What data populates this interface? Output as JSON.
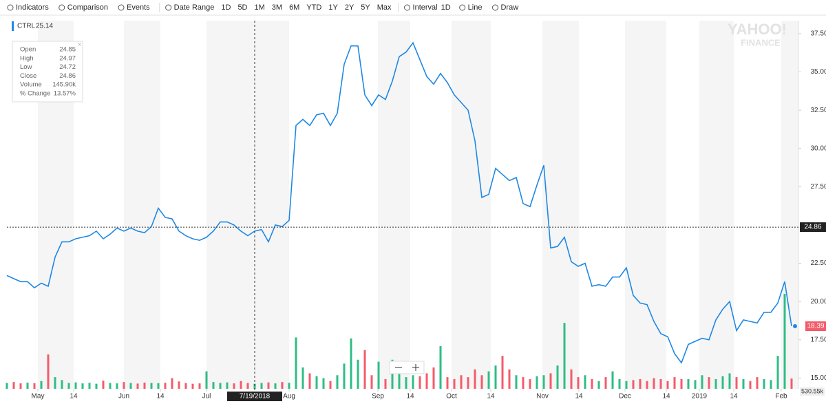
{
  "toolbar": {
    "indicators": "Indicators",
    "comparison": "Comparison",
    "events": "Events",
    "date_range": "Date Range",
    "ranges": [
      "1D",
      "5D",
      "1M",
      "3M",
      "6M",
      "YTD",
      "1Y",
      "2Y",
      "5Y",
      "Max"
    ],
    "interval": "Interval",
    "interval_value": "1D",
    "chart_type": "Line",
    "draw": "Draw"
  },
  "watermark": [
    "YAHOO!",
    "FINANCE"
  ],
  "legend_value": "25.14",
  "tooltip": {
    "rows": [
      [
        "Open",
        "24.85"
      ],
      [
        "High",
        "24.97"
      ],
      [
        "Low",
        "24.72"
      ],
      [
        "Close",
        "24.86"
      ],
      [
        "Volume",
        "145.90k"
      ],
      [
        "% Change",
        "13.57%"
      ]
    ]
  },
  "chart_data": {
    "type": "line",
    "series": [
      {
        "name": "CTRL",
        "color": "#1e88e5",
        "values": [
          21.7,
          21.5,
          21.3,
          21.3,
          20.9,
          21.2,
          21.0,
          22.9,
          23.9,
          23.9,
          24.1,
          24.2,
          24.3,
          24.6,
          24.1,
          24.4,
          24.8,
          24.6,
          24.8,
          24.6,
          24.5,
          24.9,
          26.1,
          25.5,
          25.4,
          24.6,
          24.3,
          24.1,
          24.0,
          24.2,
          24.6,
          25.2,
          25.2,
          25.0,
          24.6,
          24.3,
          24.6,
          24.7,
          23.9,
          25.0,
          24.9,
          25.3,
          31.5,
          31.9,
          31.5,
          32.2,
          32.3,
          31.5,
          32.3,
          35.5,
          36.7,
          36.7,
          33.5,
          32.8,
          33.5,
          33.2,
          34.4,
          36.0,
          36.3,
          36.9,
          35.8,
          34.7,
          34.2,
          34.9,
          34.3,
          33.5,
          33.0,
          32.5,
          30.5,
          26.8,
          27.0,
          28.7,
          28.3,
          27.9,
          28.1,
          26.4,
          26.2,
          27.6,
          28.9,
          23.5,
          23.6,
          24.2,
          22.6,
          22.3,
          22.5,
          21.0,
          21.1,
          21.0,
          21.6,
          21.6,
          22.2,
          20.4,
          19.9,
          19.8,
          18.7,
          17.9,
          17.7,
          16.6,
          16.0,
          17.2,
          17.4,
          17.6,
          17.5,
          18.8,
          19.5,
          20.0,
          18.1,
          18.8,
          18.7,
          18.6,
          19.3,
          19.3,
          19.9,
          21.3,
          18.39
        ]
      }
    ],
    "volume": {
      "up_color": "#2ebd85",
      "down_color": "#f45b69",
      "last_label": "530.55k",
      "values": [
        300,
        350,
        280,
        320,
        290,
        400,
        1770,
        600,
        450,
        300,
        330,
        280,
        310,
        260,
        420,
        300,
        280,
        350,
        300,
        270,
        320,
        300,
        290,
        310,
        550,
        380,
        300,
        260,
        280,
        900,
        350,
        300,
        330,
        280,
        400,
        300,
        260,
        300,
        330,
        280,
        350,
        310,
        2650,
        1100,
        800,
        650,
        550,
        400,
        700,
        1300,
        2600,
        1500,
        2000,
        700,
        1400,
        500,
        1500,
        1200,
        600,
        700,
        650,
        800,
        1100,
        2200,
        600,
        500,
        700,
        600,
        1000,
        700,
        900,
        1200,
        1700,
        1000,
        700,
        600,
        500,
        650,
        700,
        800,
        1200,
        3400,
        1000,
        600,
        700,
        500,
        400,
        600,
        900,
        500,
        400,
        450,
        500,
        400,
        550,
        500,
        400,
        600,
        500,
        500,
        450,
        700,
        600,
        500,
        650,
        800,
        600,
        500,
        400,
        600,
        500,
        450,
        1700,
        4900,
        530.55
      ]
    },
    "xticks": [
      {
        "value": 4.5,
        "label": "May"
      },
      {
        "value": 9.7,
        "label": "14"
      },
      {
        "value": 17,
        "label": "Jun"
      },
      {
        "value": 22.3,
        "label": "14"
      },
      {
        "value": 29,
        "label": "Jul"
      },
      {
        "value": 41,
        "label": "Aug"
      },
      {
        "value": 53.9,
        "label": "Sep"
      },
      {
        "value": 58.6,
        "label": "14"
      },
      {
        "value": 64.6,
        "label": "Oct"
      },
      {
        "value": 70.3,
        "label": "14"
      },
      {
        "value": 77.8,
        "label": "Nov"
      },
      {
        "value": 83.1,
        "label": "14"
      },
      {
        "value": 89.8,
        "label": "Dec"
      },
      {
        "value": 95.8,
        "label": "14"
      },
      {
        "value": 100.6,
        "label": "2019"
      },
      {
        "value": 105.6,
        "label": "14"
      },
      {
        "value": 112.5,
        "label": "Feb"
      }
    ],
    "ylim": [
      14.3,
      38.35
    ],
    "yticks": [
      {
        "value": 15,
        "label": "15.00"
      },
      {
        "value": 17.5,
        "label": "17.50"
      },
      {
        "value": 20,
        "label": "20.00"
      },
      {
        "value": 22.5,
        "label": "22.50"
      },
      {
        "value": 27.5,
        "label": "27.50"
      },
      {
        "value": 30,
        "label": "30.00"
      },
      {
        "value": 32.5,
        "label": "32.50"
      },
      {
        "value": 35,
        "label": "35.00"
      },
      {
        "value": 37.5,
        "label": "37.50"
      }
    ],
    "crosshair": {
      "x": 36,
      "x_label": "7/19/2018",
      "y": 24.86
    }
  }
}
